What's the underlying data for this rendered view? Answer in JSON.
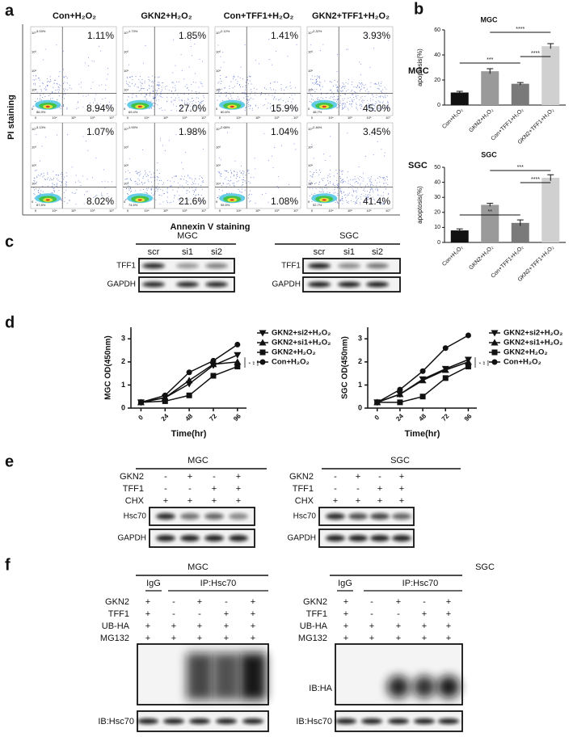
{
  "panel_a": {
    "label": "a",
    "columns": [
      "Con+H₂O₂",
      "GKN2+H₂O₂",
      "Con+TFF1+H₂O₂",
      "GKN2+TFF1+H₂O₂"
    ],
    "rows": [
      {
        "name": "MGC",
        "plots": [
          {
            "ul": "3.03%",
            "ur": "1.11%",
            "ll": "86.9%",
            "lr": "8.94%"
          },
          {
            "ul": "1.73%",
            "ur": "1.85%",
            "ll": "69.4%",
            "lr": "27.0%"
          },
          {
            "ul": "2.12%",
            "ur": "1.41%",
            "ll": "80.6%",
            "lr": "15.9%"
          },
          {
            "ul": "2.32%",
            "ur": "3.93%",
            "ll": "48.7%",
            "lr": "45.0%"
          }
        ]
      },
      {
        "name": "SGC",
        "plots": [
          {
            "ul": "3.13%",
            "ur": "1.07%",
            "ll": "87.8%",
            "lr": "8.02%"
          },
          {
            "ul": "1.93%",
            "ur": "1.98%",
            "ll": "74.5%",
            "lr": "21.6%"
          },
          {
            "ul": "2.68%",
            "ur": "1.04%",
            "ll": "95.5%",
            "lr": "1.08%"
          },
          {
            "ul": "2.46%",
            "ur": "3.45%",
            "ll": "52.7%",
            "lr": "41.4%"
          }
        ]
      }
    ],
    "axis_ticks": [
      "0",
      "10⁴",
      "10⁵",
      "10⁶",
      "10⁷"
    ],
    "y_label": "PI staining",
    "x_label": "Annexin V staining"
  },
  "panel_c": {
    "label": "c",
    "blots": [
      {
        "cell": "MGC",
        "lanes": [
          "scr",
          "si1",
          "si2"
        ],
        "rows": [
          "TFF1",
          "GAPDH"
        ]
      },
      {
        "cell": "SGC",
        "lanes": [
          "scr",
          "si1",
          "si2"
        ],
        "rows": [
          "TFF1",
          "GAPDH"
        ]
      }
    ]
  },
  "panel_e": {
    "label": "e",
    "blots": [
      {
        "cell": "MGC",
        "conditions": [
          {
            "name": "GKN2",
            "signs": [
              "-",
              "+",
              "-",
              "+"
            ]
          },
          {
            "name": "TFF1",
            "signs": [
              "-",
              "-",
              "+",
              "+"
            ]
          },
          {
            "name": "CHX",
            "signs": [
              "+",
              "+",
              "+",
              "+"
            ]
          }
        ],
        "rows": [
          "Hsc70",
          "GAPDH"
        ]
      },
      {
        "cell": "SGC",
        "conditions": [
          {
            "name": "GKN2",
            "signs": [
              "-",
              "+",
              "-",
              "+"
            ]
          },
          {
            "name": "TFF1",
            "signs": [
              "-",
              "-",
              "+",
              "+"
            ]
          },
          {
            "name": "CHX",
            "signs": [
              "+",
              "+",
              "+",
              "+"
            ]
          }
        ],
        "rows": [
          "Hsc70",
          "GAPDH"
        ]
      }
    ]
  },
  "panel_f": {
    "label": "f",
    "blots": [
      {
        "cell": "MGC",
        "groups": [
          "IgG",
          "IP:Hsc70"
        ],
        "conditions": [
          {
            "name": "GKN2",
            "signs": [
              "+",
              "-",
              "+",
              "-",
              "+"
            ]
          },
          {
            "name": "TFF1",
            "signs": [
              "+",
              "-",
              "-",
              "+",
              "+"
            ]
          },
          {
            "name": "UB-HA",
            "signs": [
              "+",
              "+",
              "+",
              "+",
              "+"
            ]
          },
          {
            "name": "MG132",
            "signs": [
              "+",
              "+",
              "+",
              "+",
              "+"
            ]
          }
        ],
        "rows": [
          "IB:Hsc70"
        ]
      },
      {
        "cell": "SGC",
        "groups": [
          "IgG",
          "IP:Hsc70"
        ],
        "conditions": [
          {
            "name": "GKN2",
            "signs": [
              "+",
              "-",
              "+",
              "-",
              "+"
            ]
          },
          {
            "name": "TFF1",
            "signs": [
              "+",
              "-",
              "-",
              "+",
              "+"
            ]
          },
          {
            "name": "UB-HA",
            "signs": [
              "+",
              "+",
              "+",
              "+",
              "+"
            ]
          },
          {
            "name": "MG132",
            "signs": [
              "+",
              "+",
              "+",
              "+",
              "+"
            ]
          }
        ],
        "rows": [
          "IB:HA",
          "IB:Hsc70"
        ]
      }
    ]
  },
  "chart_data": [
    {
      "type": "bar",
      "panel": "b",
      "title": "MGC",
      "y_label": "apoptosis(%)",
      "categories": [
        "Con+H₂O₂",
        "GKN2+H₂O₂",
        "Con+TFF1+H₂O₂",
        "GKN2+TFF1+H₂O₂"
      ],
      "values": [
        10,
        27,
        17,
        47
      ],
      "errors": [
        1,
        2,
        1,
        2
      ],
      "colors": [
        "#111111",
        "#9a9a9a",
        "#7a7a7a",
        "#d0d0d0"
      ],
      "ylim": [
        0,
        60
      ],
      "yticks": [
        0,
        20,
        40,
        60
      ],
      "annotations": [
        "****",
        "***",
        "****"
      ]
    },
    {
      "type": "bar",
      "title": "SGC",
      "y_label": "apoptosis(%)",
      "categories": [
        "Con+H₂O₂",
        "GKN2+H₂O₂",
        "Con+TFF1+H₂O₂",
        "GKN2+TFF1+H₂O₂"
      ],
      "values": [
        8,
        25,
        13,
        43
      ],
      "errors": [
        1,
        1,
        2,
        2
      ],
      "colors": [
        "#111111",
        "#9a9a9a",
        "#7a7a7a",
        "#d0d0d0"
      ],
      "ylim": [
        0,
        50
      ],
      "yticks": [
        0,
        10,
        20,
        30,
        40,
        50
      ],
      "annotations": [
        "***",
        "**",
        "****"
      ]
    },
    {
      "type": "line",
      "panel": "d",
      "y_label": "MGC OD(450nm)",
      "x_label": "Time(hr)",
      "x": [
        0,
        24,
        48,
        72,
        96
      ],
      "xlim": [
        -10,
        105
      ],
      "xticks": [
        0,
        24,
        48,
        72,
        96
      ],
      "ylim": [
        0,
        3.5
      ],
      "yticks": [
        0,
        1,
        2,
        3
      ],
      "series": [
        {
          "name": "GKN2+si2+H₂O₂",
          "marker": "triangle-down",
          "color": "#111111",
          "values": [
            0.25,
            0.45,
            1.05,
            1.85,
            2.3
          ]
        },
        {
          "name": "GKN2+si1+H₂O₂",
          "marker": "triangle-up",
          "color": "#111111",
          "values": [
            0.25,
            0.45,
            1.2,
            1.9,
            2.0
          ]
        },
        {
          "name": "GKN2+H₂O₂",
          "marker": "square",
          "color": "#111111",
          "values": [
            0.25,
            0.3,
            0.55,
            1.4,
            1.8
          ]
        },
        {
          "name": "Con+H₂O₂",
          "marker": "circle",
          "color": "#111111",
          "values": [
            0.25,
            0.55,
            1.55,
            2.05,
            2.75
          ]
        }
      ],
      "annotations": [
        "*",
        "**",
        "***"
      ]
    },
    {
      "type": "line",
      "y_label": "SGC OD(450nm)",
      "x_label": "Time(hr)",
      "x": [
        0,
        24,
        48,
        72,
        96
      ],
      "xlim": [
        -10,
        105
      ],
      "xticks": [
        0,
        24,
        48,
        72,
        96
      ],
      "ylim": [
        0,
        3.5
      ],
      "yticks": [
        0,
        1,
        2,
        3
      ],
      "series": [
        {
          "name": "GKN2+si2+H₂O₂",
          "marker": "triangle-down",
          "color": "#111111",
          "values": [
            0.25,
            0.6,
            1.25,
            1.7,
            2.1
          ]
        },
        {
          "name": "GKN2+si1+H₂O₂",
          "marker": "triangle-up",
          "color": "#111111",
          "values": [
            0.25,
            0.6,
            1.2,
            1.65,
            2.0
          ]
        },
        {
          "name": "GKN2+H₂O₂",
          "marker": "square",
          "color": "#111111",
          "values": [
            0.25,
            0.25,
            0.5,
            1.3,
            1.8
          ]
        },
        {
          "name": "Con+H₂O₂",
          "marker": "circle",
          "color": "#111111",
          "values": [
            0.25,
            0.8,
            1.6,
            2.6,
            3.15
          ]
        }
      ],
      "annotations": [
        "*",
        "**",
        "***"
      ]
    }
  ]
}
